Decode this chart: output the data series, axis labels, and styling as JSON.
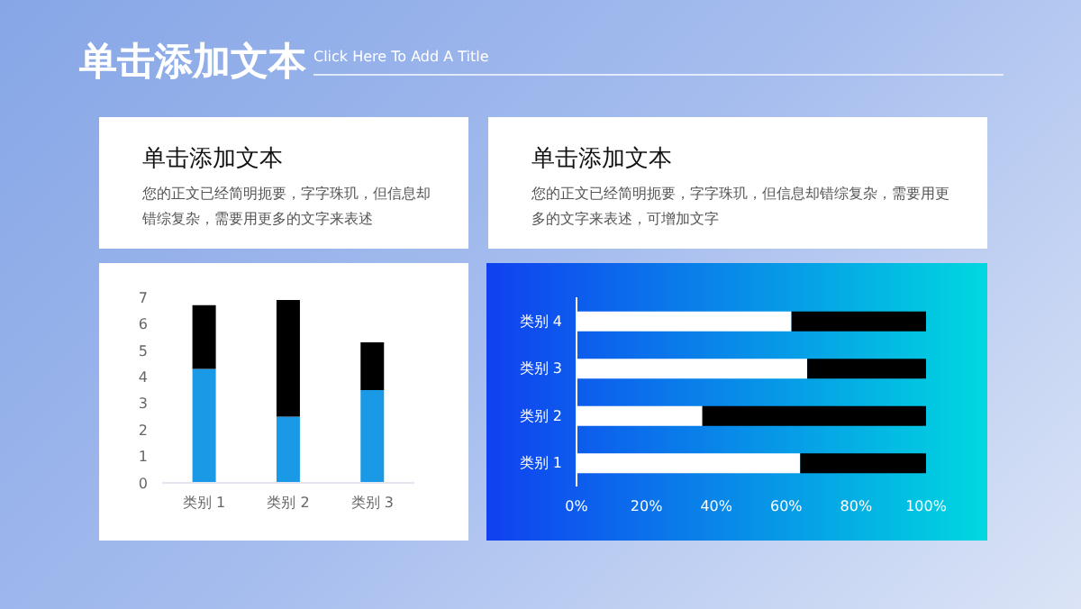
{
  "chart_data": [
    {
      "type": "other",
      "title": "单击添加文本",
      "subtitle": "Click Here To Add A Title"
    },
    {
      "type": "other",
      "title": "单击添加文本",
      "annotations": [
        "您的正文已经简明扼要，字字珠玑，但信息却错综复杂，需要用更多的文字来表述"
      ]
    },
    {
      "type": "other",
      "title": "单击添加文本",
      "annotations": [
        "您的正文已经简明扼要，字字珠玑，但信息却错综复杂，需要用更多的文字来表述，可增加文字"
      ]
    },
    {
      "type": "bar",
      "stacked": true,
      "categories": [
        "类别 1",
        "类别 2",
        "类别 3"
      ],
      "ylim": [
        0,
        7
      ],
      "yticks": [
        0,
        1,
        2,
        3,
        4,
        5,
        6,
        7
      ],
      "series": [
        {
          "color": "#1a9ae6",
          "values": [
            4.3,
            2.5,
            3.5
          ]
        },
        {
          "color": "#000000",
          "values": [
            2.4,
            4.4,
            1.8
          ]
        }
      ]
    },
    {
      "type": "bar",
      "stacked": true,
      "orientation": "horizontal",
      "categories": [
        "类别 4",
        "类别 3",
        "类别 2",
        "类别 1"
      ],
      "xlim": [
        0,
        100
      ],
      "xticks": [
        {
          "value": 0,
          "label": "0%"
        },
        {
          "value": 20,
          "label": "20%"
        },
        {
          "value": 40,
          "label": "40%"
        },
        {
          "value": 60,
          "label": "60%"
        },
        {
          "value": 80,
          "label": "80%"
        },
        {
          "value": 100,
          "label": "100%"
        }
      ],
      "series": [
        {
          "color": "#ffffff",
          "values": [
            61.5,
            66,
            36,
            64
          ]
        },
        {
          "color": "#000000",
          "values": [
            38.5,
            34,
            64,
            36
          ]
        }
      ]
    }
  ]
}
